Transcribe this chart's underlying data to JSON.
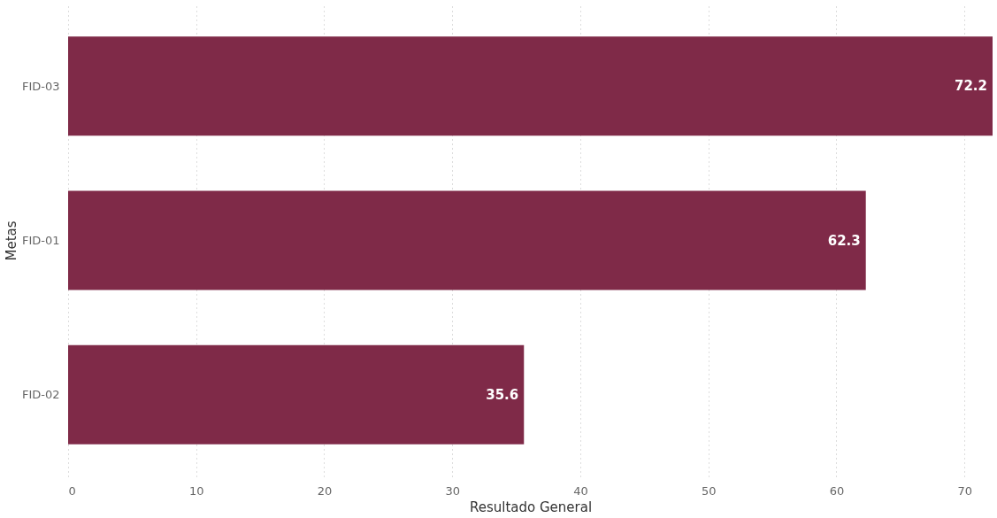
{
  "chart_data": {
    "type": "bar",
    "orientation": "horizontal",
    "xlabel": "Resultado General",
    "ylabel": "Metas",
    "categories": [
      "FID-03",
      "FID-01",
      "FID-02"
    ],
    "values": [
      72.2,
      62.3,
      35.6
    ],
    "color": "#7f2a48",
    "xlim": [
      0,
      72.2
    ],
    "xticks": [
      0,
      10,
      20,
      30,
      40,
      50,
      60,
      70
    ],
    "grid": "x",
    "data_labels": true
  }
}
